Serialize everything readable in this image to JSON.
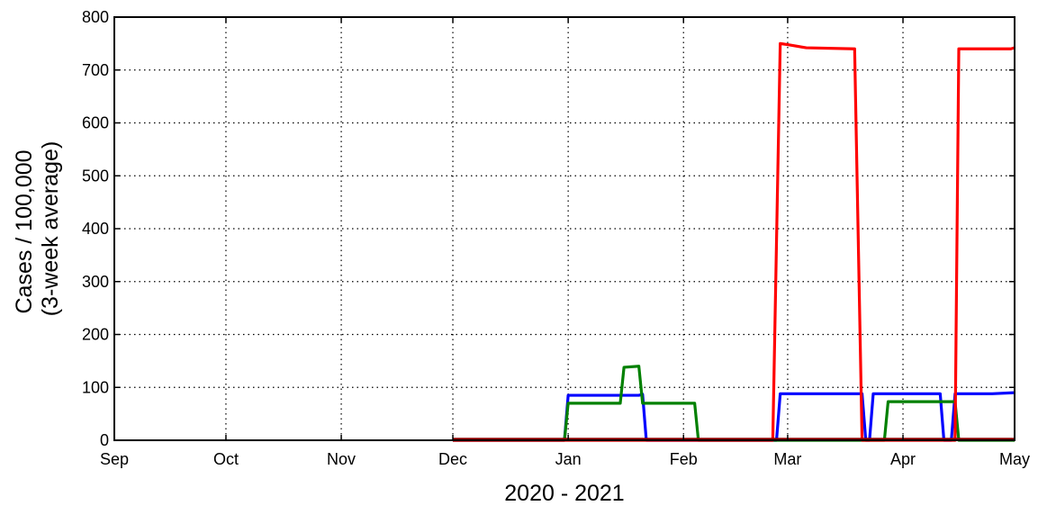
{
  "chart_data": {
    "type": "line",
    "title": "",
    "xlabel": "2020 - 2021",
    "ylabel": [
      "Cases / 100,000",
      "(3-week average)"
    ],
    "x_unit": "date",
    "xlim": [
      "2020-09-01",
      "2021-05-01"
    ],
    "ylim": [
      0,
      800
    ],
    "grid": true,
    "legend": "none",
    "x_ticks": [
      {
        "date": "2020-09-01",
        "label": "Sep"
      },
      {
        "date": "2020-10-01",
        "label": "Oct"
      },
      {
        "date": "2020-11-01",
        "label": "Nov"
      },
      {
        "date": "2020-12-01",
        "label": "Dec"
      },
      {
        "date": "2021-01-01",
        "label": "Jan"
      },
      {
        "date": "2021-02-01",
        "label": "Feb"
      },
      {
        "date": "2021-03-01",
        "label": "Mar"
      },
      {
        "date": "2021-04-01",
        "label": "Apr"
      },
      {
        "date": "2021-05-01",
        "label": "May"
      }
    ],
    "y_ticks": [
      0,
      100,
      200,
      300,
      400,
      500,
      600,
      700,
      800
    ],
    "series": [
      {
        "color": "#0000ff",
        "points": [
          [
            "2020-12-01",
            0
          ],
          [
            "2020-12-31",
            0
          ],
          [
            "2021-01-01",
            85
          ],
          [
            "2021-01-20",
            85
          ],
          [
            "2021-01-21",
            87
          ],
          [
            "2021-01-22",
            0
          ],
          [
            "2021-02-26",
            0
          ],
          [
            "2021-02-27",
            88
          ],
          [
            "2021-03-21",
            88
          ],
          [
            "2021-03-22",
            0
          ],
          [
            "2021-03-23",
            0
          ],
          [
            "2021-03-24",
            88
          ],
          [
            "2021-04-11",
            88
          ],
          [
            "2021-04-12",
            0
          ],
          [
            "2021-04-14",
            0
          ],
          [
            "2021-04-15",
            88
          ],
          [
            "2021-04-25",
            88
          ],
          [
            "2021-05-01",
            90
          ]
        ]
      },
      {
        "color": "#008000",
        "points": [
          [
            "2020-12-01",
            0
          ],
          [
            "2020-12-31",
            0
          ],
          [
            "2021-01-01",
            70
          ],
          [
            "2021-01-15",
            70
          ],
          [
            "2021-01-16",
            138
          ],
          [
            "2021-01-20",
            140
          ],
          [
            "2021-01-21",
            70
          ],
          [
            "2021-02-04",
            70
          ],
          [
            "2021-02-05",
            0
          ],
          [
            "2021-03-27",
            0
          ],
          [
            "2021-03-28",
            73
          ],
          [
            "2021-04-15",
            73
          ],
          [
            "2021-04-16",
            0
          ],
          [
            "2021-05-01",
            0
          ]
        ]
      },
      {
        "color": "#ff0000",
        "points": [
          [
            "2020-12-01",
            0
          ],
          [
            "2021-02-25",
            0
          ],
          [
            "2021-02-27",
            750
          ],
          [
            "2021-03-01",
            748
          ],
          [
            "2021-03-06",
            742
          ],
          [
            "2021-03-19",
            740
          ],
          [
            "2021-03-21",
            0
          ],
          [
            "2021-04-15",
            0
          ],
          [
            "2021-04-16",
            740
          ],
          [
            "2021-04-30",
            740
          ],
          [
            "2021-05-01",
            742
          ]
        ]
      },
      {
        "color": "#8b0000",
        "points": [
          [
            "2020-12-01",
            2
          ],
          [
            "2021-05-01",
            2
          ]
        ]
      }
    ]
  }
}
